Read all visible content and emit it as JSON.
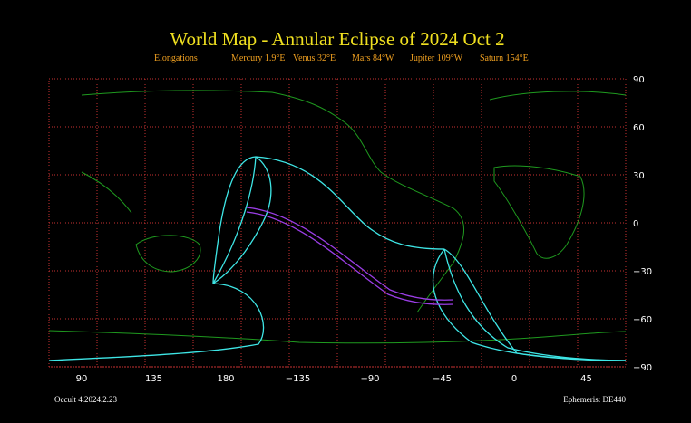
{
  "title": "World Map - Annular Eclipse of 2024 Oct 2",
  "elongations": {
    "label": "Elongations",
    "items": [
      "Mercury 1.9°E",
      "Venus 32°E",
      "Mars 84°W",
      "Jupiter 109°W",
      "Saturn 154°E"
    ]
  },
  "longitude_labels": [
    "90",
    "135",
    "180",
    "−135",
    "−90",
    "−45",
    "0",
    "45"
  ],
  "latitude_labels": [
    "90",
    "60",
    "30",
    "0",
    "−30",
    "−60",
    "−90"
  ],
  "footer_left": "Occult 4.2024.2.23",
  "footer_right": "Ephemeris: DE440"
}
